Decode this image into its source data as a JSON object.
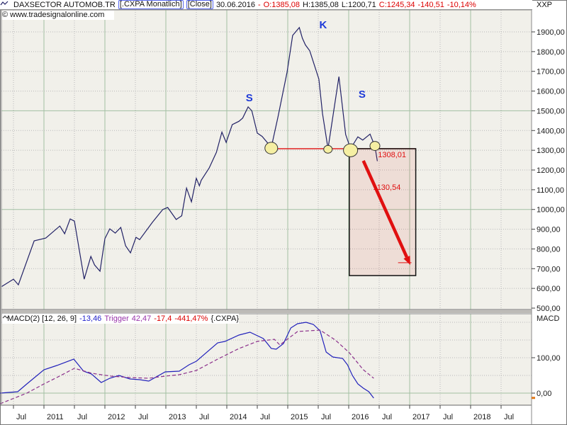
{
  "header": {
    "symbol": "DAXSECTOR AUTOMOB.TR",
    "feed_badge": "[.CXPA  Monatlich]",
    "close_badge": "[Close]",
    "date": "30.06.2016",
    "dash": "-",
    "open": "O:1385,08",
    "high": "H:1385,08",
    "low": "L:1200,71",
    "close": "C:1245,34",
    "change_abs": "-140,51",
    "change_pct": "-10,14%",
    "right_axis_top_label": "XXP"
  },
  "watermark": "© www.tradesignalonline.com",
  "macd_header": {
    "name": "MACD(2) [12, 26, 9]",
    "value": "-13,46",
    "trigger_label": "Trigger",
    "trigger_value": "42,47",
    "diff": "-17,4",
    "pct": "-441,47%",
    "instrument": "{.CXPA}"
  },
  "colors": {
    "plot_bg": "#f1f0ea",
    "grid_green": "#a3bfa3",
    "grid_dot": "#b9b9b9",
    "chrome": "#8a8a8a",
    "panel_border": "#666666",
    "splitter": "#bdbbb7",
    "price_line": "#222266",
    "macd_line": "#2222bb",
    "trigger_line": "#8b2f8b",
    "red": "#e01010",
    "label_blue": "#1e3ad8",
    "circle_fill": "#f5efa3",
    "circle_stroke": "#333333",
    "box_fill": "rgba(220,60,40,0.10)",
    "box_stroke": "#111111",
    "axis_text": "#1a1a1a",
    "orange_marker": "#e07818"
  },
  "chart_data": [
    {
      "type": "line",
      "title": "DAXSECTOR AUTOMOB.TR [.CXPA Monatlich Close]",
      "x_range": [
        2010.25,
        2019.05
      ],
      "ylim": [
        500,
        2010
      ],
      "grid": true,
      "y_axis": {
        "side": "right",
        "top_label": "XXP",
        "ticks": [
          {
            "value": 1900,
            "label": "1900,00"
          },
          {
            "value": 1800,
            "label": "1800,00"
          },
          {
            "value": 1700,
            "label": "1700,00"
          },
          {
            "value": 1600,
            "label": "1600,00"
          },
          {
            "value": 1500,
            "label": "1500,00"
          },
          {
            "value": 1400,
            "label": "1400,00"
          },
          {
            "value": 1300,
            "label": "1300,00"
          },
          {
            "value": 1200,
            "label": "1200,00"
          },
          {
            "value": 1100,
            "label": "1100,00"
          },
          {
            "value": 1000,
            "label": "1000,00"
          },
          {
            "value": 900,
            "label": "900,00"
          },
          {
            "value": 800,
            "label": "800,00"
          },
          {
            "value": 700,
            "label": "700,00"
          },
          {
            "value": 600,
            "label": "600,00"
          },
          {
            "value": 500,
            "label": "500,00"
          }
        ]
      },
      "x_axis": {
        "year_ticks": [
          2011,
          2012,
          2013,
          2014,
          2015,
          2016,
          2017,
          2018
        ],
        "jul_ticks": [
          2010.5,
          2011.5,
          2012.5,
          2013.5,
          2014.5,
          2015.5,
          2016.5,
          2017.5,
          2018.5
        ],
        "labels": [
          {
            "t": 2010.5,
            "label": "Jul"
          },
          {
            "t": 2011,
            "label": "2011"
          },
          {
            "t": 2011.5,
            "label": "Jul"
          },
          {
            "t": 2012,
            "label": "2012"
          },
          {
            "t": 2012.5,
            "label": "Jul"
          },
          {
            "t": 2013,
            "label": "2013"
          },
          {
            "t": 2013.5,
            "label": "Jul"
          },
          {
            "t": 2014,
            "label": "2014"
          },
          {
            "t": 2014.5,
            "label": "Jul"
          },
          {
            "t": 2015,
            "label": "2015"
          },
          {
            "t": 2015.5,
            "label": "Jul"
          },
          {
            "t": 2016,
            "label": "2016"
          },
          {
            "t": 2016.5,
            "label": "Jul"
          },
          {
            "t": 2017,
            "label": "2017"
          },
          {
            "t": 2017.5,
            "label": "Jul"
          },
          {
            "t": 2018,
            "label": "2018"
          },
          {
            "t": 2018.5,
            "label": "Jul"
          }
        ]
      },
      "series": [
        {
          "name": ".CXPA monthly close",
          "style": "solid",
          "points": [
            [
              2010.3,
              608
            ],
            [
              2010.5,
              647
            ],
            [
              2010.58,
              618
            ],
            [
              2010.84,
              841
            ],
            [
              2011.03,
              855
            ],
            [
              2011.26,
              916
            ],
            [
              2011.34,
              877
            ],
            [
              2011.43,
              952
            ],
            [
              2011.5,
              941
            ],
            [
              2011.66,
              647
            ],
            [
              2011.77,
              762
            ],
            [
              2011.83,
              719
            ],
            [
              2011.92,
              687
            ],
            [
              2012.0,
              852
            ],
            [
              2012.08,
              902
            ],
            [
              2012.17,
              880
            ],
            [
              2012.26,
              909
            ],
            [
              2012.34,
              816
            ],
            [
              2012.42,
              780
            ],
            [
              2012.51,
              859
            ],
            [
              2012.57,
              847
            ],
            [
              2012.78,
              935
            ],
            [
              2012.95,
              1000
            ],
            [
              2013.03,
              1010
            ],
            [
              2013.17,
              949
            ],
            [
              2013.26,
              968
            ],
            [
              2013.34,
              1108
            ],
            [
              2013.42,
              1039
            ],
            [
              2013.5,
              1158
            ],
            [
              2013.55,
              1120
            ],
            [
              2013.58,
              1148
            ],
            [
              2013.71,
              1210
            ],
            [
              2013.83,
              1290
            ],
            [
              2013.92,
              1392
            ],
            [
              2013.99,
              1340
            ],
            [
              2014.09,
              1430
            ],
            [
              2014.2,
              1447
            ],
            [
              2014.26,
              1463
            ],
            [
              2014.35,
              1520
            ],
            [
              2014.41,
              1500
            ],
            [
              2014.5,
              1387
            ],
            [
              2014.58,
              1370
            ],
            [
              2014.73,
              1315
            ],
            [
              2014.84,
              1469
            ],
            [
              2014.99,
              1697
            ],
            [
              2015.08,
              1882
            ],
            [
              2015.19,
              1922
            ],
            [
              2015.24,
              1868
            ],
            [
              2015.29,
              1834
            ],
            [
              2015.36,
              1804
            ],
            [
              2015.51,
              1661
            ],
            [
              2015.57,
              1487
            ],
            [
              2015.66,
              1308
            ],
            [
              2015.84,
              1673
            ],
            [
              2015.95,
              1380
            ],
            [
              2016.03,
              1308
            ],
            [
              2016.15,
              1368
            ],
            [
              2016.23,
              1352
            ],
            [
              2016.35,
              1382
            ],
            [
              2016.43,
              1320
            ],
            [
              2016.47,
              1245
            ]
          ]
        }
      ],
      "annotations": {
        "pattern_labels": [
          {
            "text": "S",
            "t": 2014.37,
            "price": 1566
          },
          {
            "text": "K",
            "t": 2015.58,
            "price": 1936
          },
          {
            "text": "S",
            "t": 2016.22,
            "price": 1584
          }
        ],
        "neckline": {
          "t1": 2014.65,
          "t2": 2017.1,
          "price": 1308.01
        },
        "circles": [
          {
            "t": 2014.73,
            "price": 1311,
            "r": 9
          },
          {
            "t": 2015.66,
            "price": 1305,
            "r": 6
          },
          {
            "t": 2016.03,
            "price": 1300,
            "r": 10
          },
          {
            "t": 2016.43,
            "price": 1322,
            "r": 7
          }
        ],
        "target_box": {
          "t1": 2016.01,
          "t2": 2017.1,
          "price_top": 1308,
          "price_bottom": 665
        },
        "arrow": {
          "t1": 2016.24,
          "p1": 1247,
          "t2": 2017.01,
          "p2": 719
        },
        "arrow_tick": {
          "t1": 2016.81,
          "t2": 2017.03,
          "price": 730
        },
        "price_labels": [
          {
            "text": "1308,01",
            "t": 2016.48,
            "price": 1265
          },
          {
            "text": "1130,54",
            "t": 2016.4,
            "price": 1100
          }
        ]
      }
    },
    {
      "type": "line",
      "title": "MACD(2) [12, 26, 9]",
      "panel_label": "MACD",
      "ylim": [
        -34,
        224
      ],
      "y_axis": {
        "ticks": [
          {
            "value": 100,
            "label": "100,00"
          },
          {
            "value": 0,
            "label": "0,00"
          }
        ],
        "grid_values": [
          200,
          150,
          100,
          50
        ],
        "zero_line": 0,
        "current_marker": -13.46
      },
      "series": [
        {
          "name": "MACD",
          "style": "solid",
          "last_value": -13.46,
          "points": [
            [
              2010.28,
              0
            ],
            [
              2010.57,
              4
            ],
            [
              2010.72,
              26
            ],
            [
              2011.0,
              66
            ],
            [
              2011.21,
              78
            ],
            [
              2011.49,
              96
            ],
            [
              2011.65,
              62
            ],
            [
              2011.78,
              54
            ],
            [
              2011.94,
              30
            ],
            [
              2012.08,
              42
            ],
            [
              2012.23,
              50
            ],
            [
              2012.41,
              40
            ],
            [
              2012.57,
              38
            ],
            [
              2012.72,
              34
            ],
            [
              2012.99,
              60
            ],
            [
              2013.22,
              62
            ],
            [
              2013.38,
              80
            ],
            [
              2013.5,
              90
            ],
            [
              2013.85,
              142
            ],
            [
              2013.97,
              146
            ],
            [
              2014.2,
              164
            ],
            [
              2014.38,
              172
            ],
            [
              2014.6,
              154
            ],
            [
              2014.73,
              126
            ],
            [
              2014.81,
              124
            ],
            [
              2014.93,
              140
            ],
            [
              2015.05,
              184
            ],
            [
              2015.16,
              196
            ],
            [
              2015.3,
              200
            ],
            [
              2015.42,
              194
            ],
            [
              2015.53,
              176
            ],
            [
              2015.63,
              116
            ],
            [
              2015.74,
              102
            ],
            [
              2015.9,
              98
            ],
            [
              2015.98,
              80
            ],
            [
              2016.06,
              50
            ],
            [
              2016.15,
              26
            ],
            [
              2016.24,
              14
            ],
            [
              2016.33,
              4
            ],
            [
              2016.41,
              -14
            ]
          ]
        },
        {
          "name": "Trigger",
          "style": "dashed",
          "last_value": 42.47,
          "points": [
            [
              2010.28,
              -30
            ],
            [
              2010.72,
              0
            ],
            [
              2011.0,
              26
            ],
            [
              2011.21,
              44
            ],
            [
              2011.5,
              70
            ],
            [
              2011.79,
              56
            ],
            [
              2011.94,
              52
            ],
            [
              2012.1,
              48
            ],
            [
              2012.41,
              44
            ],
            [
              2012.72,
              42
            ],
            [
              2012.99,
              48
            ],
            [
              2013.22,
              52
            ],
            [
              2013.5,
              64
            ],
            [
              2013.85,
              96
            ],
            [
              2014.2,
              126
            ],
            [
              2014.5,
              146
            ],
            [
              2014.78,
              152
            ],
            [
              2014.87,
              136
            ],
            [
              2015.16,
              174
            ],
            [
              2015.53,
              178
            ],
            [
              2015.78,
              150
            ],
            [
              2016.01,
              114
            ],
            [
              2016.24,
              66
            ],
            [
              2016.41,
              42
            ]
          ]
        }
      ]
    }
  ]
}
